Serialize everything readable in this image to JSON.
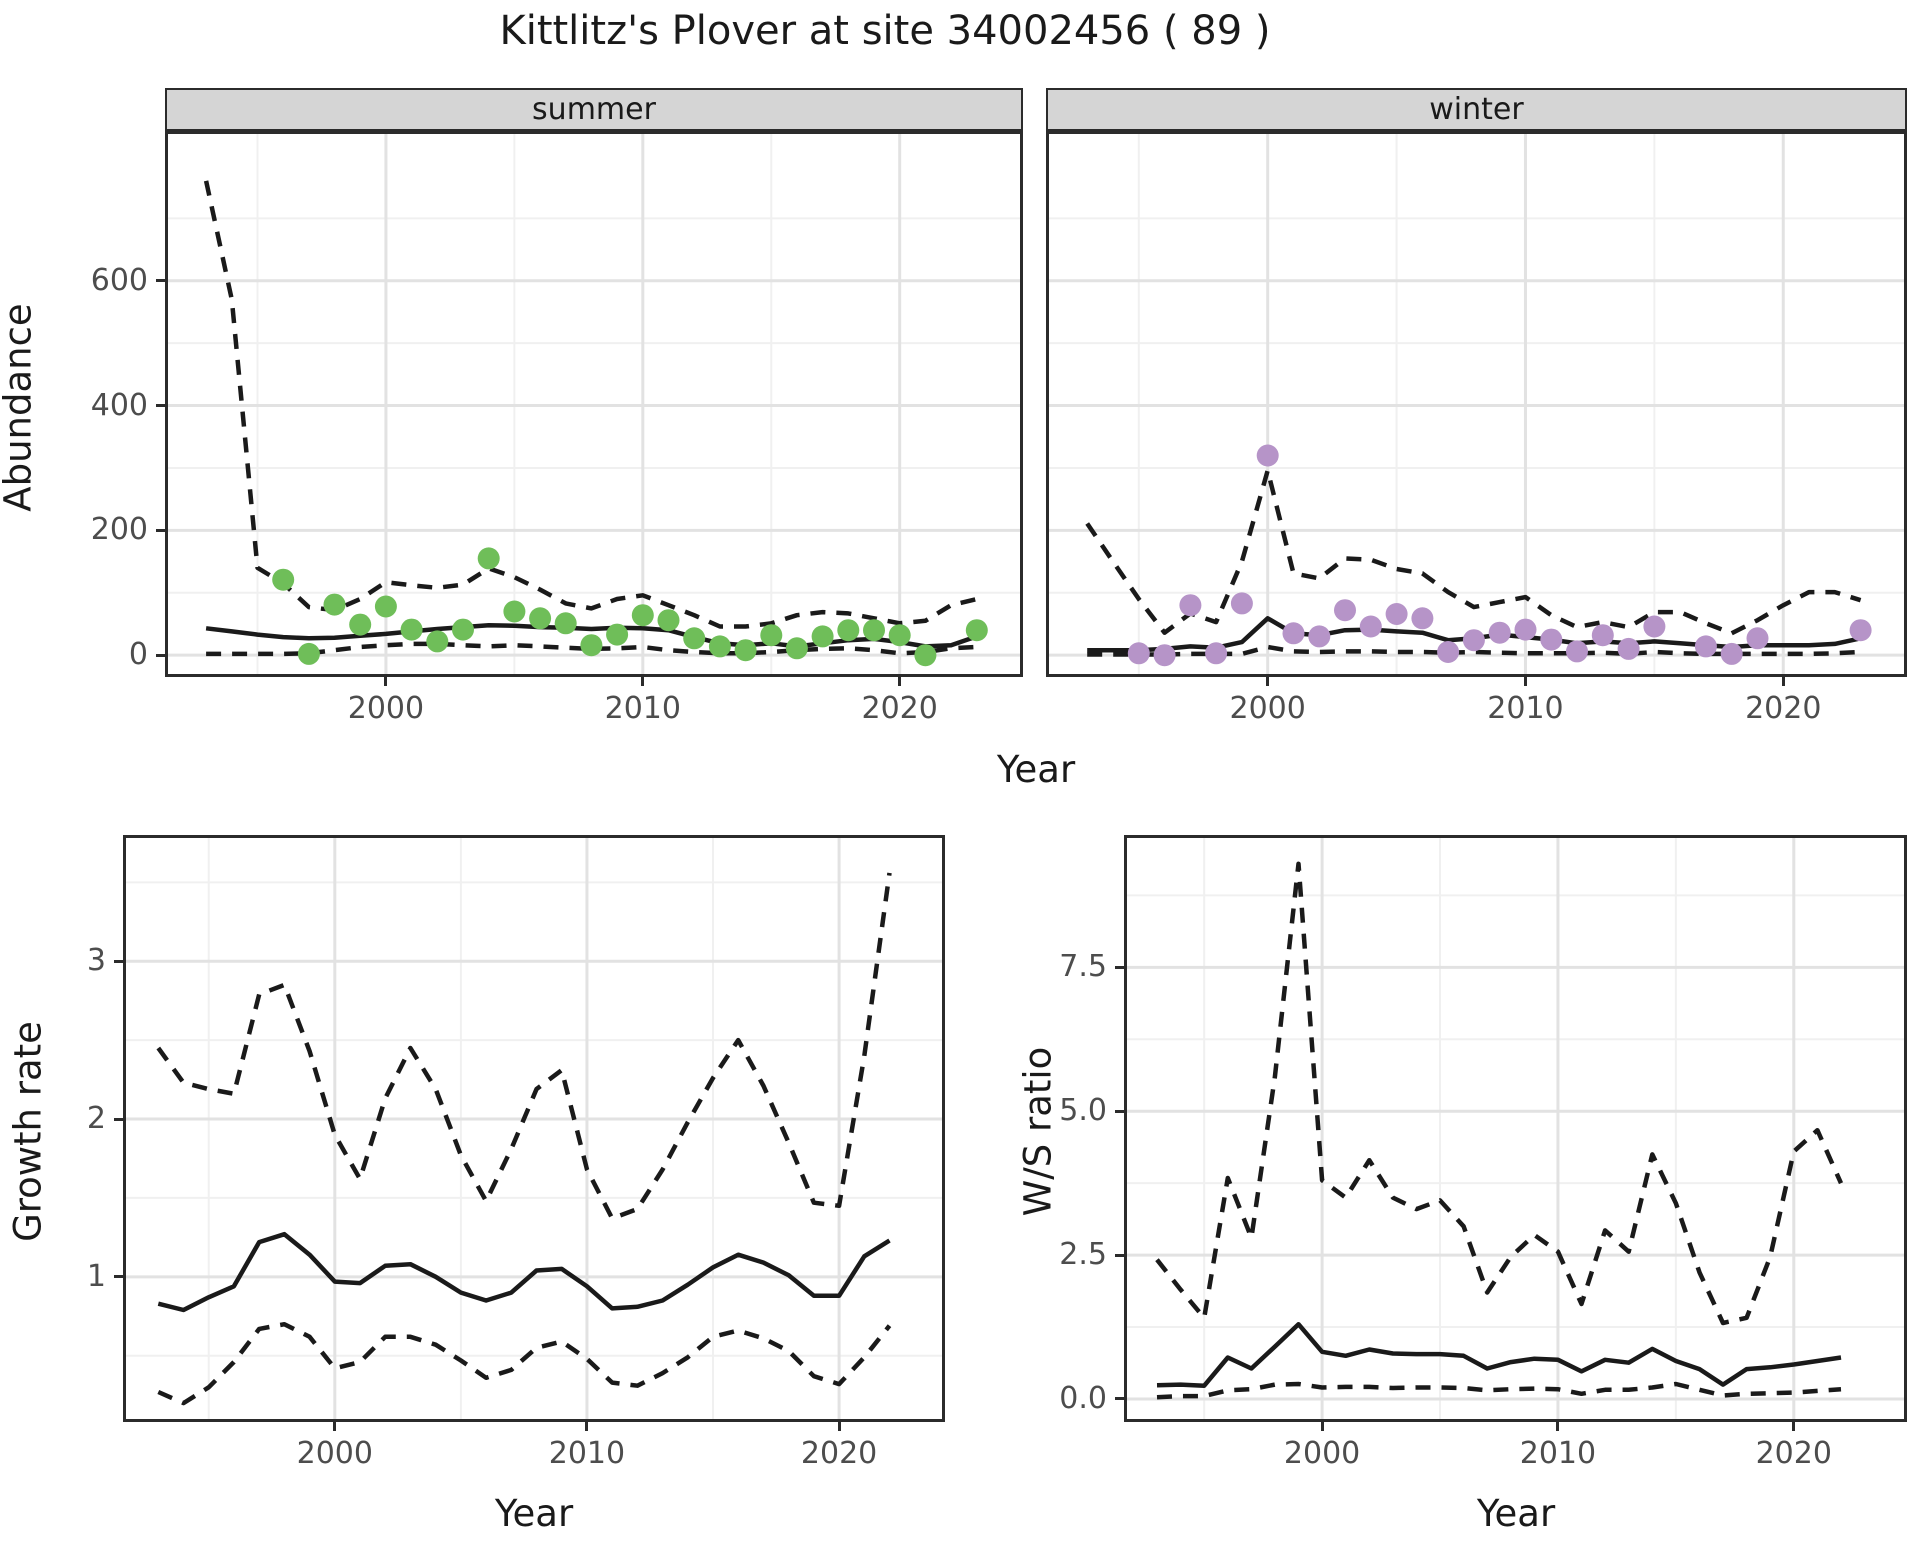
{
  "title": "Kittlitz's Plover at site 34002456 ( 89 )",
  "colors": {
    "summer_point": "#6FBE59",
    "winter_point": "#B694C8",
    "line": "#1a1a1a",
    "grid_major": "#e2e2e2",
    "grid_minor": "#f0f0f0",
    "panel_border": "#2b2b2b",
    "strip_bg": "#d5d5d5",
    "tick_text": "#4d4d4d"
  },
  "chart_data": [
    {
      "id": "abundance_summer",
      "type": "line",
      "facet": "summer",
      "xlabel": "Year",
      "ylabel": "Abundance",
      "legend": "solid = model fit, dashed = 95% CI, points = observed counts",
      "xlim": [
        1991.4,
        2024.8
      ],
      "ylim": [
        -35,
        840
      ],
      "x_major": [
        2000,
        2010,
        2020
      ],
      "x_minor": [
        1995,
        2005,
        2015
      ],
      "x_tick_labels": [
        "2000",
        "2010",
        "2020"
      ],
      "y_major": [
        0,
        200,
        400,
        600
      ],
      "y_minor": [
        100,
        300,
        500,
        700
      ],
      "y_tick_labels": [
        "0",
        "200",
        "400",
        "600"
      ],
      "years": [
        1993,
        1994,
        1995,
        1996,
        1997,
        1998,
        1999,
        2000,
        2001,
        2002,
        2003,
        2004,
        2005,
        2006,
        2007,
        2008,
        2009,
        2010,
        2011,
        2012,
        2013,
        2014,
        2015,
        2016,
        2017,
        2018,
        2019,
        2020,
        2021,
        2022,
        2023
      ],
      "fit": [
        43,
        38,
        33,
        29,
        27,
        28,
        31,
        34,
        38,
        42,
        45,
        48,
        47,
        45,
        44,
        42,
        44,
        43,
        40,
        29,
        19,
        16,
        19,
        14,
        19,
        24,
        26,
        21,
        14,
        16,
        30
      ],
      "upper": [
        760,
        570,
        140,
        115,
        77,
        72,
        90,
        117,
        112,
        108,
        113,
        139,
        125,
        105,
        83,
        75,
        90,
        96,
        80,
        64,
        46,
        46,
        51,
        64,
        69,
        67,
        59,
        51,
        55,
        80,
        90
      ],
      "lower": [
        2,
        2,
        2,
        2,
        3,
        8,
        13,
        16,
        18,
        18,
        16,
        14,
        16,
        14,
        12,
        10,
        11,
        13,
        8,
        5,
        3,
        3,
        5,
        8,
        10,
        11,
        8,
        3,
        5,
        11,
        13
      ],
      "points": [
        [
          1996,
          121
        ],
        [
          1997,
          2
        ],
        [
          1998,
          81
        ],
        [
          1999,
          49
        ],
        [
          2000,
          78
        ],
        [
          2001,
          41
        ],
        [
          2002,
          22
        ],
        [
          2003,
          41
        ],
        [
          2004,
          155
        ],
        [
          2005,
          70
        ],
        [
          2006,
          59
        ],
        [
          2007,
          51
        ],
        [
          2008,
          16
        ],
        [
          2009,
          33
        ],
        [
          2010,
          64
        ],
        [
          2011,
          56
        ],
        [
          2012,
          27
        ],
        [
          2013,
          14
        ],
        [
          2014,
          8
        ],
        [
          2015,
          32
        ],
        [
          2016,
          11
        ],
        [
          2017,
          30
        ],
        [
          2018,
          40
        ],
        [
          2019,
          40
        ],
        [
          2020,
          32
        ],
        [
          2021,
          0
        ],
        [
          2023,
          40
        ]
      ]
    },
    {
      "id": "abundance_winter",
      "type": "line",
      "facet": "winter",
      "xlabel": "Year",
      "ylabel": "Abundance",
      "legend": "solid = model fit, dashed = 95% CI, points = observed counts",
      "xlim": [
        1991.4,
        2024.8
      ],
      "ylim": [
        -35,
        840
      ],
      "x_major": [
        2000,
        2010,
        2020
      ],
      "x_minor": [
        1995,
        2005,
        2015
      ],
      "x_tick_labels": [
        "2000",
        "2010",
        "2020"
      ],
      "y_major": [
        0,
        200,
        400,
        600
      ],
      "y_minor": [
        100,
        300,
        500,
        700
      ],
      "y_tick_labels": [],
      "years": [
        1993,
        1994,
        1995,
        1996,
        1997,
        1998,
        1999,
        2000,
        2001,
        2002,
        2003,
        2004,
        2005,
        2006,
        2007,
        2008,
        2009,
        2010,
        2011,
        2012,
        2013,
        2014,
        2015,
        2016,
        2017,
        2018,
        2019,
        2020,
        2021,
        2022,
        2023
      ],
      "fit": [
        8,
        8,
        8,
        10,
        14,
        12,
        21,
        59,
        35,
        32,
        40,
        41,
        38,
        36,
        24,
        27,
        33,
        29,
        25,
        19,
        22,
        19,
        22,
        19,
        16,
        13,
        16,
        16,
        16,
        18,
        27
      ],
      "upper": [
        211,
        150,
        90,
        36,
        67,
        53,
        150,
        296,
        131,
        123,
        155,
        153,
        138,
        131,
        101,
        77,
        85,
        93,
        64,
        45,
        53,
        45,
        69,
        69,
        51,
        35,
        56,
        80,
        101,
        101,
        88
      ],
      "lower": [
        1,
        1,
        1,
        1,
        2,
        2,
        2,
        13,
        6,
        5,
        6,
        6,
        5,
        5,
        4,
        5,
        4,
        3,
        3,
        3,
        4,
        2,
        5,
        3,
        2,
        2,
        2,
        2,
        2,
        3,
        5
      ],
      "points": [
        [
          1995,
          3
        ],
        [
          1996,
          0
        ],
        [
          1997,
          80
        ],
        [
          1998,
          3
        ],
        [
          1999,
          83
        ],
        [
          2000,
          320
        ],
        [
          2001,
          35
        ],
        [
          2002,
          30
        ],
        [
          2003,
          72
        ],
        [
          2004,
          46
        ],
        [
          2005,
          66
        ],
        [
          2006,
          59
        ],
        [
          2007,
          5
        ],
        [
          2008,
          24
        ],
        [
          2009,
          36
        ],
        [
          2010,
          41
        ],
        [
          2011,
          25
        ],
        [
          2012,
          6
        ],
        [
          2013,
          32
        ],
        [
          2014,
          10
        ],
        [
          2015,
          46
        ],
        [
          2017,
          14
        ],
        [
          2018,
          2
        ],
        [
          2019,
          27
        ],
        [
          2023,
          40
        ]
      ]
    },
    {
      "id": "growth_rate",
      "type": "line",
      "facet": "",
      "xlabel": "Year",
      "ylabel": "Growth rate",
      "legend": "solid = median growth rate, dashed = 95% CI",
      "xlim": [
        1991.6,
        2024.2
      ],
      "ylim": [
        0.08,
        3.8
      ],
      "x_major": [
        2000,
        2010,
        2020
      ],
      "x_minor": [
        1995,
        2005,
        2015
      ],
      "x_tick_labels": [
        "2000",
        "2010",
        "2020"
      ],
      "y_major": [
        1,
        2,
        3
      ],
      "y_minor": [
        0.5,
        1.5,
        2.5,
        3.5
      ],
      "y_tick_labels": [
        "1",
        "2",
        "3"
      ],
      "years": [
        1993,
        1994,
        1995,
        1996,
        1997,
        1998,
        1999,
        2000,
        2001,
        2002,
        2003,
        2004,
        2005,
        2006,
        2007,
        2008,
        2009,
        2010,
        2011,
        2012,
        2013,
        2014,
        2015,
        2016,
        2017,
        2018,
        2019,
        2020,
        2021,
        2022
      ],
      "fit": [
        0.83,
        0.79,
        0.87,
        0.94,
        1.22,
        1.27,
        1.14,
        0.97,
        0.96,
        1.07,
        1.08,
        1.0,
        0.9,
        0.85,
        0.9,
        1.04,
        1.05,
        0.94,
        0.8,
        0.81,
        0.85,
        0.95,
        1.06,
        1.14,
        1.09,
        1.01,
        0.88,
        0.88,
        1.13,
        1.23
      ],
      "upper": [
        2.45,
        2.23,
        2.19,
        2.16,
        2.79,
        2.85,
        2.43,
        1.9,
        1.62,
        2.13,
        2.45,
        2.19,
        1.77,
        1.48,
        1.81,
        2.19,
        2.31,
        1.68,
        1.37,
        1.43,
        1.68,
        1.98,
        2.26,
        2.5,
        2.21,
        1.85,
        1.47,
        1.45,
        2.4,
        3.56
      ],
      "lower": [
        0.27,
        0.2,
        0.3,
        0.46,
        0.67,
        0.7,
        0.62,
        0.42,
        0.46,
        0.62,
        0.62,
        0.57,
        0.47,
        0.36,
        0.41,
        0.55,
        0.59,
        0.48,
        0.33,
        0.31,
        0.39,
        0.49,
        0.62,
        0.66,
        0.61,
        0.53,
        0.37,
        0.32,
        0.49,
        0.69
      ],
      "points": []
    },
    {
      "id": "ws_ratio",
      "type": "line",
      "facet": "",
      "xlabel": "Year",
      "ylabel": "W/S ratio",
      "legend": "solid = median winter/summer ratio, dashed = 95% CI",
      "xlim": [
        1991.6,
        2024.8
      ],
      "ylim": [
        -0.4,
        9.8
      ],
      "x_major": [
        2000,
        2010,
        2020
      ],
      "x_minor": [
        1995,
        2005,
        2015
      ],
      "x_tick_labels": [
        "2000",
        "2010",
        "2020"
      ],
      "y_major": [
        0,
        2.5,
        5.0,
        7.5
      ],
      "y_minor": [
        1.25,
        3.75,
        6.25,
        8.75
      ],
      "y_tick_labels": [
        "0.0",
        "2.5",
        "5.0",
        "7.5"
      ],
      "years": [
        1993,
        1994,
        1995,
        1996,
        1997,
        1998,
        1999,
        2000,
        2001,
        2002,
        2003,
        2004,
        2005,
        2006,
        2007,
        2008,
        2009,
        2010,
        2011,
        2012,
        2013,
        2014,
        2015,
        2016,
        2017,
        2018,
        2019,
        2020,
        2021,
        2022
      ],
      "fit": [
        0.24,
        0.25,
        0.23,
        0.72,
        0.53,
        0.91,
        1.3,
        0.82,
        0.75,
        0.86,
        0.79,
        0.78,
        0.78,
        0.75,
        0.53,
        0.64,
        0.7,
        0.68,
        0.48,
        0.68,
        0.63,
        0.87,
        0.66,
        0.52,
        0.25,
        0.52,
        0.55,
        0.6,
        0.66,
        0.72
      ],
      "upper": [
        2.42,
        1.9,
        1.41,
        3.84,
        2.8,
        5.6,
        9.3,
        3.8,
        3.5,
        4.15,
        3.5,
        3.3,
        3.45,
        3.0,
        1.85,
        2.47,
        2.85,
        2.56,
        1.65,
        2.93,
        2.56,
        4.25,
        3.4,
        2.2,
        1.32,
        1.41,
        2.47,
        4.3,
        4.67,
        3.75
      ],
      "lower": [
        0.03,
        0.05,
        0.05,
        0.15,
        0.17,
        0.25,
        0.26,
        0.2,
        0.21,
        0.21,
        0.19,
        0.2,
        0.2,
        0.19,
        0.15,
        0.17,
        0.18,
        0.17,
        0.09,
        0.16,
        0.16,
        0.2,
        0.26,
        0.16,
        0.06,
        0.09,
        0.1,
        0.11,
        0.14,
        0.17
      ],
      "points": []
    }
  ]
}
